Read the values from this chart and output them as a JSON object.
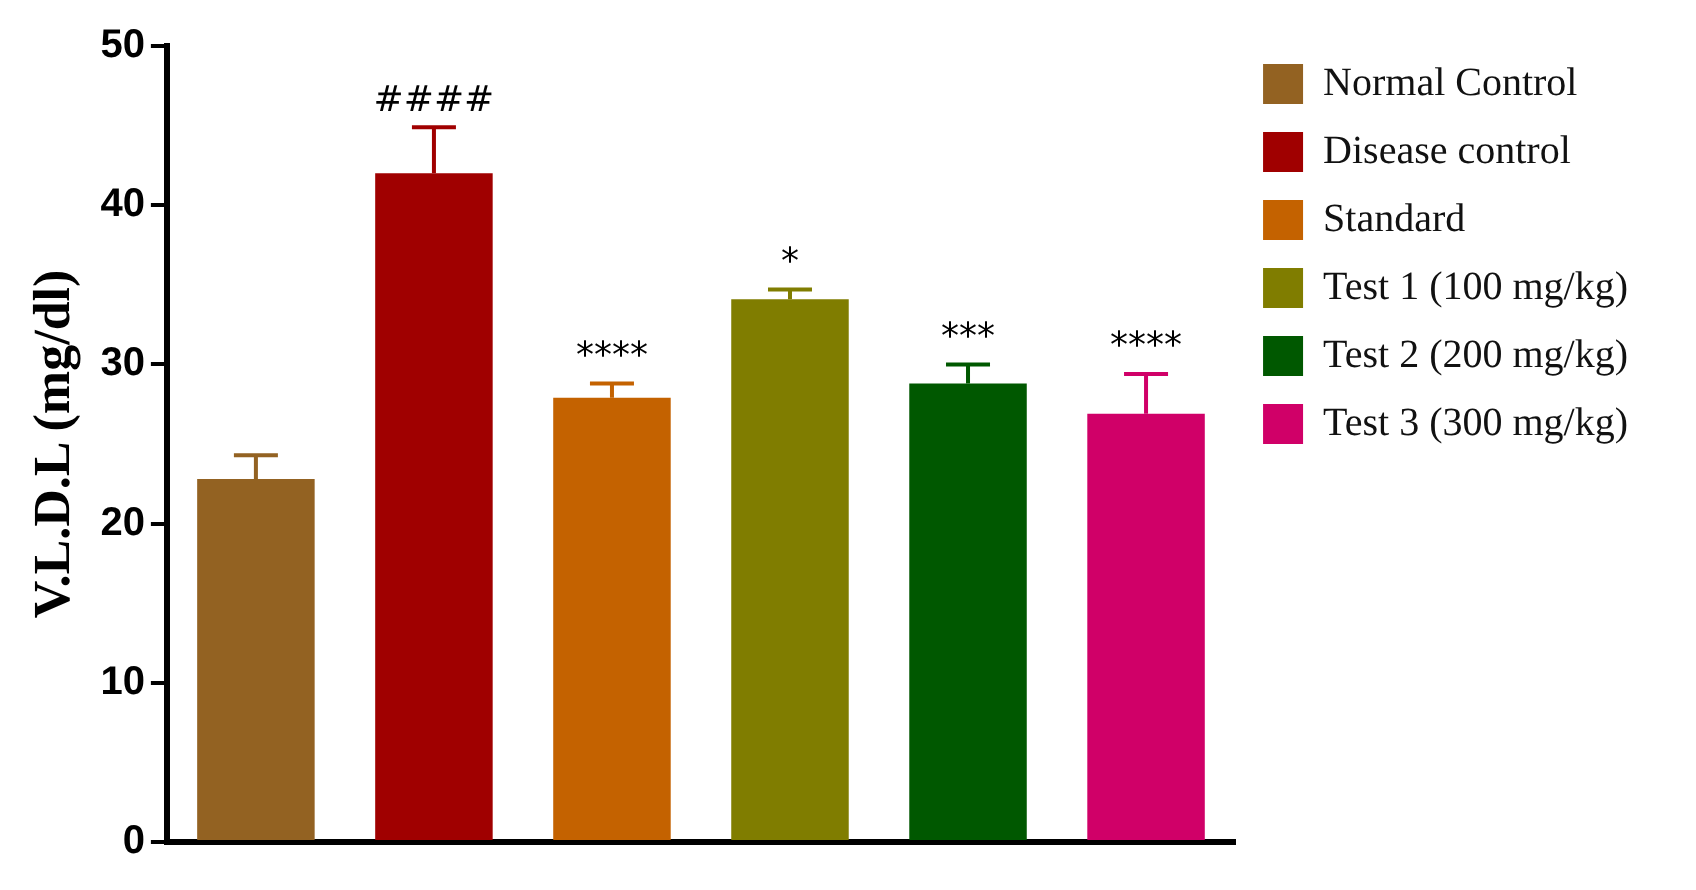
{
  "chart_data": {
    "type": "bar",
    "ylabel": "V.L.D.L (mg/dl)",
    "categories": [
      null,
      null,
      null,
      null,
      null,
      null
    ],
    "series": [
      {
        "name": "Normal Control",
        "color": "#936222",
        "values": [
          22.8,
          null,
          null,
          null,
          null,
          null
        ],
        "errors": [
          [
            22.8,
            24.3
          ],
          null,
          null,
          null,
          null,
          null
        ]
      },
      {
        "name": "Disease control",
        "color": "#a00000",
        "values": [
          null,
          42.0,
          null,
          null,
          null,
          null
        ],
        "errors": [
          null,
          [
            42.0,
            44.9
          ],
          null,
          null,
          null,
          null
        ],
        "value_labels": [
          null,
          "####",
          null,
          null,
          null,
          null
        ]
      },
      {
        "name": "Standard",
        "color": "#c46200",
        "values": [
          null,
          null,
          27.9,
          null,
          null,
          null
        ],
        "errors": [
          null,
          null,
          [
            27.9,
            28.8
          ],
          null,
          null,
          null
        ],
        "value_labels": [
          null,
          null,
          "****",
          null,
          null,
          null
        ]
      },
      {
        "name": "Test 1 (100 mg/kg)",
        "color": "#807d00",
        "values": [
          null,
          null,
          null,
          34.1,
          null,
          null
        ],
        "errors": [
          null,
          null,
          null,
          [
            34.1,
            34.7
          ],
          null,
          null
        ],
        "value_labels": [
          null,
          null,
          null,
          "*",
          null,
          null
        ]
      },
      {
        "name": "Test 2 (200 mg/kg)",
        "color": "#005800",
        "values": [
          null,
          null,
          null,
          null,
          28.8,
          null
        ],
        "errors": [
          null,
          null,
          null,
          null,
          [
            28.8,
            30.0
          ],
          null
        ],
        "value_labels": [
          null,
          null,
          null,
          null,
          "***",
          null
        ]
      },
      {
        "name": "Test 3 (300 mg/kg)",
        "color": "#d00068",
        "values": [
          null,
          null,
          null,
          null,
          null,
          26.9
        ],
        "errors": [
          null,
          null,
          null,
          null,
          null,
          [
            26.9,
            29.4
          ]
        ],
        "value_labels": [
          null,
          null,
          null,
          null,
          null,
          "****"
        ]
      }
    ],
    "ylim": [
      0,
      50
    ],
    "yticks": [
      0,
      10,
      20,
      30,
      40,
      50
    ],
    "grid": false,
    "legend": "top right"
  }
}
